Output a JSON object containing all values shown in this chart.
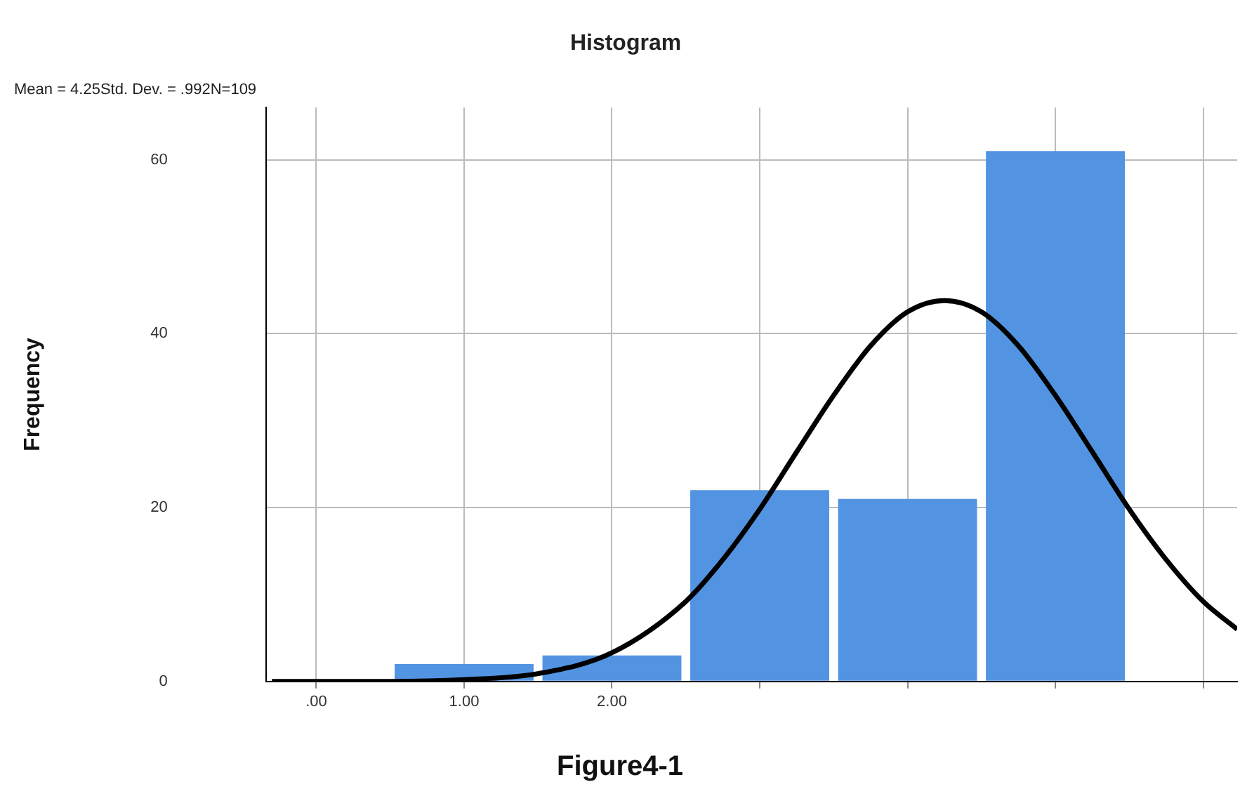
{
  "chart_data": {
    "type": "histogram",
    "title": "Histogram",
    "ylabel": "Frequency",
    "annotations": [
      "Mean = 4.25Std. Dev. = .992N=109",
      "Figure4-1"
    ],
    "bins": [
      0.5,
      1.5,
      2.5,
      3.5,
      4.5,
      5.5
    ],
    "values": [
      2,
      3,
      22,
      21,
      61
    ],
    "color": "#5294e2",
    "series": [
      {
        "type": "line",
        "color": "#000000",
        "x": [
          -0.3,
          0.5,
          1,
          1.5,
          2,
          2.5,
          2.75,
          3,
          3.25,
          3.5,
          3.75,
          4,
          4.25,
          4.5,
          4.75,
          5,
          5.25,
          5.5,
          5.75,
          6,
          6.23
        ],
        "values": [
          0,
          0,
          0.2,
          0.9,
          3.3,
          9.2,
          14,
          19.8,
          26.4,
          32.9,
          38.6,
          42.5,
          43.8,
          42.5,
          38.6,
          32.9,
          26.4,
          19.8,
          14,
          9.2,
          6
        ]
      }
    ],
    "xlim": [
      -0.34,
      6.23
    ],
    "xticks": [
      {
        "value": 0,
        "label": ".00"
      },
      {
        "value": 1,
        "label": "1.00"
      },
      {
        "value": 2,
        "label": "2.00"
      },
      {
        "value": 3,
        "label": null
      },
      {
        "value": 4,
        "label": null
      },
      {
        "value": 5,
        "label": null
      },
      {
        "value": 6,
        "label": null
      }
    ],
    "ylim": [
      0,
      66
    ],
    "yticks": [
      0,
      20,
      40,
      60
    ],
    "grid": true,
    "legend": false,
    "marker": "none",
    "line_style": "solid"
  }
}
